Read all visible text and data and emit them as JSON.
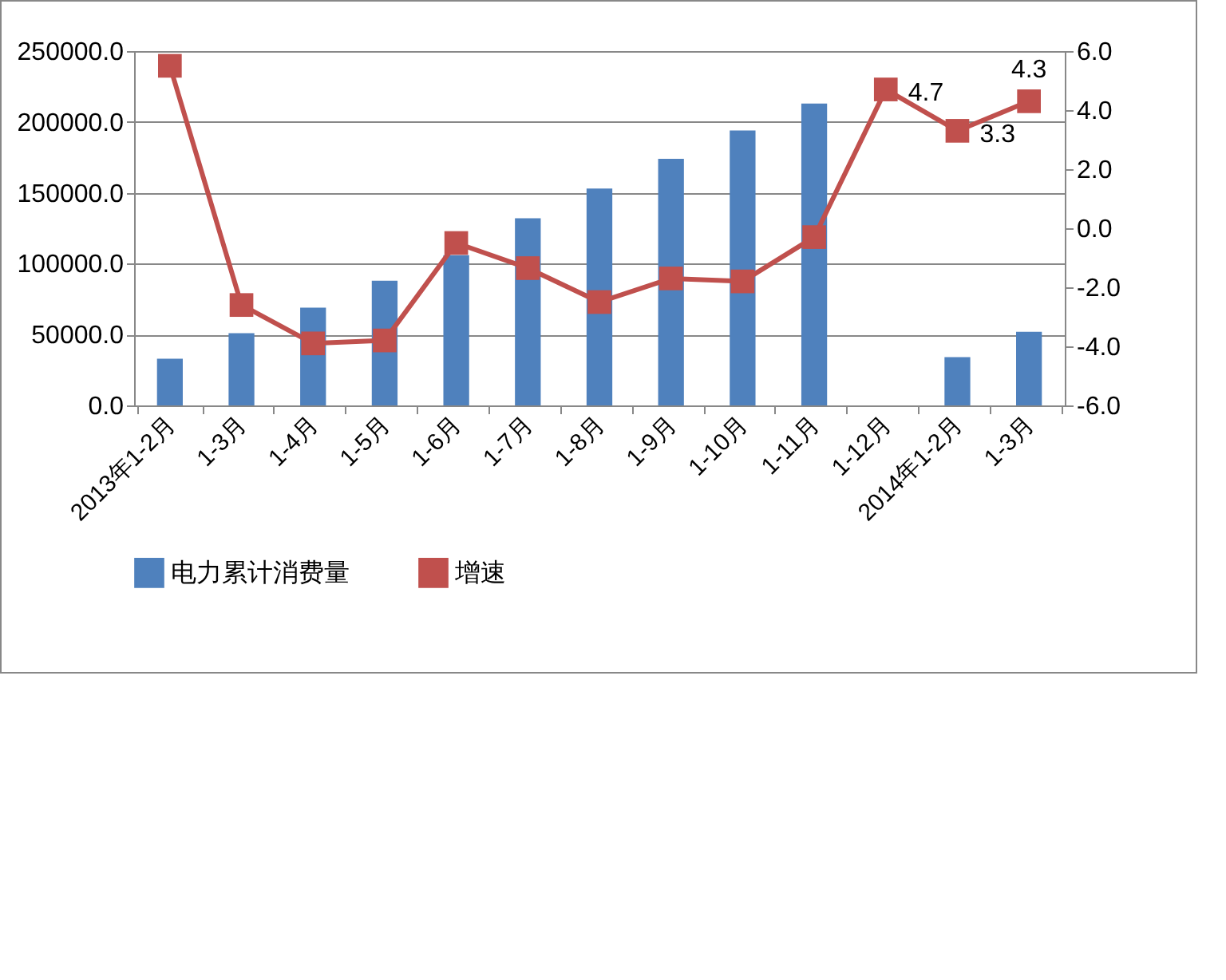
{
  "chart_data": {
    "type": "bar",
    "categories": [
      "2013年1-2月",
      "1-3月",
      "1-4月",
      "1-5月",
      "1-6月",
      "1-7月",
      "1-8月",
      "1-9月",
      "1-10月",
      "1-11月",
      "1-12月",
      "2014年1-2月",
      "1-3月"
    ],
    "series": [
      {
        "name": "电力累计消费量",
        "color": "#4f81bd",
        "values": [
          33000,
          51000,
          69000,
          88000,
          106000,
          132000,
          153000,
          174000,
          194000,
          213000,
          null,
          34000,
          52000
        ]
      },
      {
        "name": "增速",
        "type": "line",
        "axis": "y2",
        "color": "#c0504d",
        "marker": "square",
        "values": [
          5.5,
          -2.6,
          -3.9,
          -3.8,
          -0.5,
          -1.35,
          -2.5,
          -1.7,
          -1.8,
          -0.3,
          4.7,
          3.3,
          4.3
        ],
        "value_labels": [
          null,
          null,
          null,
          null,
          null,
          null,
          null,
          null,
          null,
          null,
          "4.7",
          "3.3",
          "4.3"
        ]
      }
    ],
    "ylim": [
      0,
      250000
    ],
    "yticks": [
      {
        "value": 0,
        "label": "0.0"
      },
      {
        "value": 50000,
        "label": "50000.0"
      },
      {
        "value": 100000,
        "label": "100000.0"
      },
      {
        "value": 150000,
        "label": "150000.0"
      },
      {
        "value": 200000,
        "label": "200000.0"
      },
      {
        "value": 250000,
        "label": "250000.0"
      }
    ],
    "y2lim": [
      -6,
      6
    ],
    "y2ticks": [
      {
        "value": -6,
        "label": "-6.0"
      },
      {
        "value": -4,
        "label": "-4.0"
      },
      {
        "value": -2,
        "label": "-2.0"
      },
      {
        "value": 0,
        "label": "0.0"
      },
      {
        "value": 2,
        "label": "2.0"
      },
      {
        "value": 4,
        "label": "4.0"
      },
      {
        "value": 6,
        "label": "6.0"
      }
    ],
    "grid": "y",
    "legend": "bottom"
  }
}
